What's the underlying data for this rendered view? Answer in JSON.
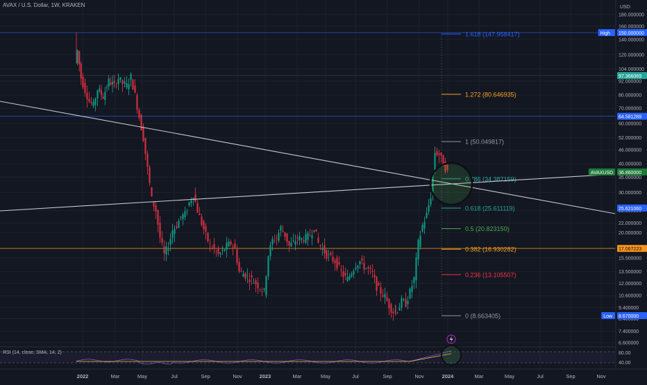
{
  "header": {
    "title": "AVAX / U.S. Dollar, 1W, KRAKEN",
    "currency": "USD"
  },
  "price_axis": {
    "ticks": [
      "180.000000",
      "160.000000",
      "140.000000",
      "120.000000",
      "104.000000",
      "92.000000",
      "80.000000",
      "70.000000",
      "60.000000",
      "52.000000",
      "46.000000",
      "40.000000",
      "35.000000",
      "30.000000",
      "25.000000",
      "22.000000",
      "20.000000",
      "17.000000",
      "15.500000",
      "13.500000",
      "12.000000",
      "10.600000",
      "9.400000",
      "8.400000",
      "7.400000",
      "6.600000"
    ],
    "tick_values": [
      180,
      160,
      140,
      120,
      104,
      92,
      80,
      70,
      60,
      52,
      46,
      40,
      35,
      30,
      25,
      22,
      20,
      17,
      15.5,
      13.5,
      12,
      10.6,
      9.4,
      8.4,
      7.4,
      6.6
    ]
  },
  "time_axis": {
    "labels": [
      "2022",
      "Mar",
      "May",
      "Jul",
      "Sep",
      "Nov",
      "2023",
      "Mar",
      "May",
      "Jul",
      "Sep",
      "Nov",
      "2024",
      "Mar",
      "May",
      "Jul",
      "Sep",
      "Nov"
    ],
    "bold": [
      "2022",
      "2023",
      "2024"
    ]
  },
  "badges": [
    {
      "label": "High",
      "value": "150.000000",
      "price": 150,
      "color": "#2962ff",
      "text_color": "#ffffff"
    },
    {
      "label": "",
      "value": "97.366069",
      "price": 97.366069,
      "color": "#26a69a",
      "text_color": "#ffffff"
    },
    {
      "label": "",
      "value": "64.581289",
      "price": 64.581289,
      "color": "#2962ff",
      "text_color": "#ffffff"
    },
    {
      "label": "AVAXUSD",
      "value": "36.860000",
      "price": 36.86,
      "color": "#1e7b3a",
      "text_color": "#ffffff"
    },
    {
      "label": "",
      "value": "25.621060",
      "price": 25.62106,
      "color": "#2962ff",
      "text_color": "#ffffff"
    },
    {
      "label": "",
      "value": "17.067223",
      "price": 17.067223,
      "color": "#f7931a",
      "text_color": "#131722"
    },
    {
      "label": "Low",
      "value": "8.670000",
      "price": 8.67,
      "color": "#2962ff",
      "text_color": "#ffffff"
    }
  ],
  "fib_levels": [
    {
      "text": "1.618 (147.958417)",
      "price": 147.958417,
      "color": "#2962ff"
    },
    {
      "text": "1.272 (80.646935)",
      "price": 80.646935,
      "color": "#f7a21b"
    },
    {
      "text": "1 (50.049817)",
      "price": 50.049817,
      "color": "#9598a1"
    },
    {
      "text": "0.786 (34.387159)",
      "price": 34.387159,
      "color": "#2ea6a3"
    },
    {
      "text": "0.618 (25.611119)",
      "price": 25.611119,
      "color": "#26a69a"
    },
    {
      "text": "0.5 (20.823150)",
      "price": 20.82315,
      "color": "#4caf50"
    },
    {
      "text": "0.382 (16.930282)",
      "price": 16.930282,
      "color": "#f7a21b"
    },
    {
      "text": "0.236 (13.105507)",
      "price": 13.105507,
      "color": "#f23645"
    },
    {
      "text": "0 (8.663405)",
      "price": 8.663405,
      "color": "#9598a1"
    }
  ],
  "hlines": [
    {
      "price": 150,
      "color": "#2962ff"
    },
    {
      "price": 97.366069,
      "color": "#3a3e4a"
    },
    {
      "price": 64.581289,
      "color": "#2962ff"
    },
    {
      "price": 17.067223,
      "color": "#f7931a"
    }
  ],
  "rsi": {
    "label": "RSI (14, close, SMA, 14, 2)",
    "ticks": [
      "80.00",
      "40.00"
    ]
  },
  "colors": {
    "up": "#26a69a",
    "up_body": "#089981",
    "down": "#f23645",
    "down_body": "#d32f3f",
    "grid": "#1e222d",
    "trend": "#c8cad0"
  },
  "chart_data": {
    "type": "candlestick",
    "title": "AVAX / U.S. Dollar, 1W, KRAKEN",
    "y_scale": "log",
    "ylim": [
      6.2,
      200
    ],
    "high": 150.0,
    "low": 8.67,
    "last_price": 36.86,
    "timeframe": "1W",
    "x_labels": [
      "2022",
      "Mar",
      "May",
      "Jul",
      "Sep",
      "Nov",
      "2023",
      "Mar",
      "May",
      "Jul",
      "Sep",
      "Nov",
      "2024",
      "Mar",
      "May",
      "Jul",
      "Sep",
      "Nov"
    ],
    "series_monthly_approx": [
      {
        "x": "2022-01",
        "open": 110,
        "high": 150,
        "low": 70,
        "close": 75
      },
      {
        "x": "2022-03",
        "open": 75,
        "high": 98,
        "low": 64,
        "close": 90
      },
      {
        "x": "2022-05",
        "open": 60,
        "high": 62,
        "low": 13.5,
        "close": 20
      },
      {
        "x": "2022-07",
        "open": 18,
        "high": 30,
        "low": 15,
        "close": 25
      },
      {
        "x": "2022-09",
        "open": 21,
        "high": 22,
        "low": 15.5,
        "close": 17
      },
      {
        "x": "2022-11",
        "open": 18,
        "high": 19,
        "low": 10.5,
        "close": 11
      },
      {
        "x": "2023-01",
        "open": 11,
        "high": 23,
        "low": 10.6,
        "close": 20
      },
      {
        "x": "2023-03",
        "open": 19,
        "high": 22,
        "low": 15,
        "close": 17
      },
      {
        "x": "2023-05",
        "open": 17,
        "high": 18,
        "low": 12,
        "close": 13
      },
      {
        "x": "2023-07",
        "open": 13,
        "high": 15.5,
        "low": 10.5,
        "close": 11
      },
      {
        "x": "2023-09",
        "open": 11,
        "high": 11.5,
        "low": 8.67,
        "close": 9.5
      },
      {
        "x": "2023-11",
        "open": 10,
        "high": 50,
        "low": 9.4,
        "close": 40
      },
      {
        "x": "2023-12",
        "open": 40,
        "high": 50,
        "low": 33,
        "close": 36.86
      }
    ],
    "rsi_ylim": [
      30,
      90
    ],
    "rsi_levels": [
      80,
      40
    ]
  }
}
